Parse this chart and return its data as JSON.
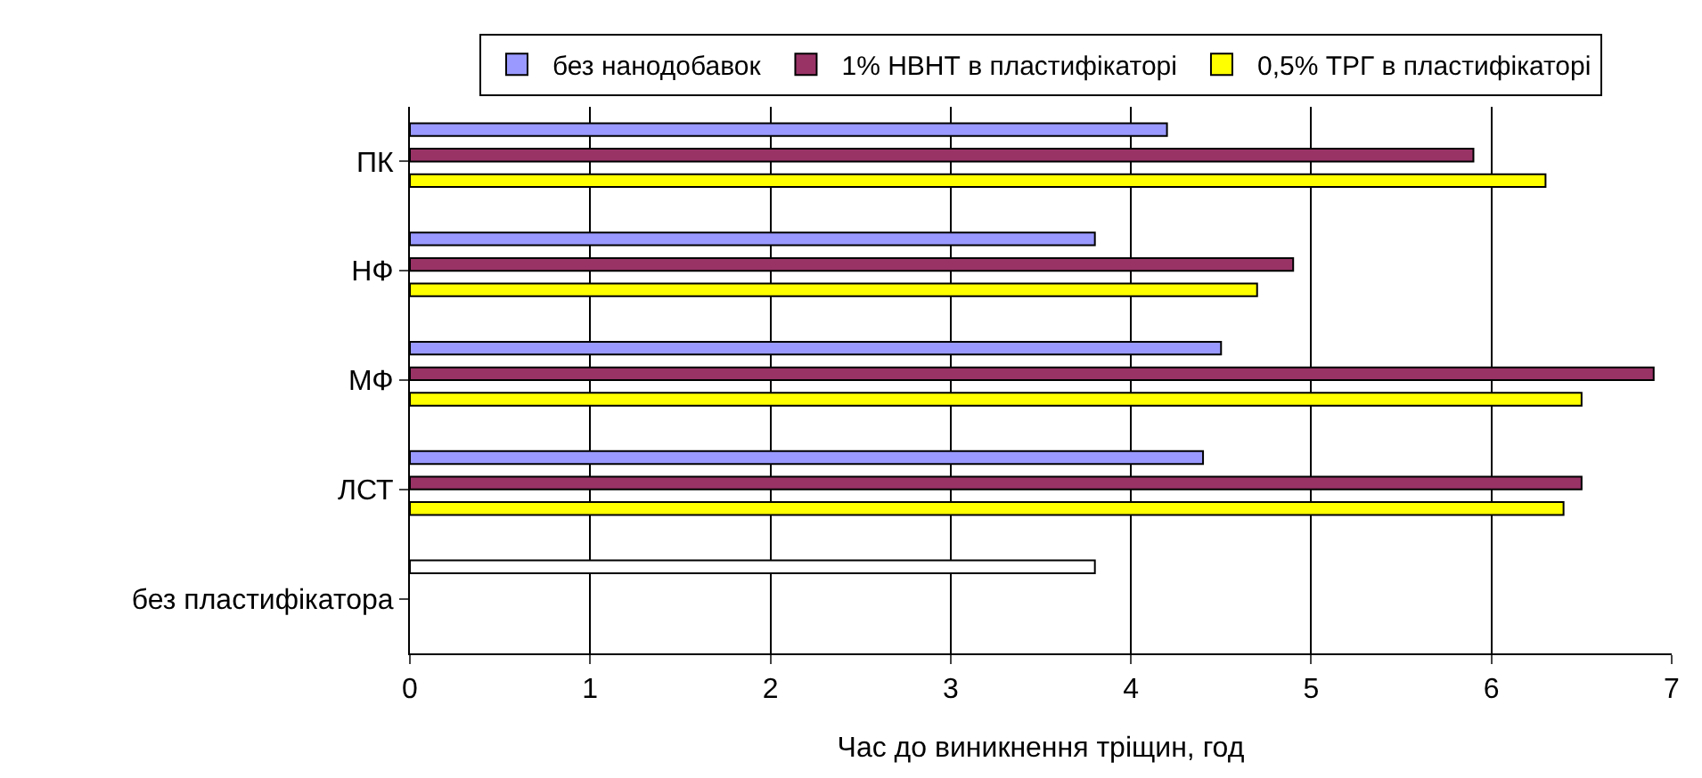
{
  "chart_data": {
    "type": "bar",
    "orientation": "horizontal",
    "xlabel": "Час до виникнення тріщин, год",
    "categories": [
      "ПК",
      "НФ",
      "МФ",
      "ЛСТ",
      "без пластифікатора"
    ],
    "series": [
      {
        "name": "без нанодобавок",
        "color": "#9999ff",
        "colors": [
          "#9999ff",
          "#9999ff",
          "#9999ff",
          "#9999ff",
          "#ffffff"
        ],
        "values": [
          4.2,
          3.8,
          4.5,
          4.4,
          3.8
        ]
      },
      {
        "name": "1% НВНТ в пластифікаторі",
        "color": "#993366",
        "values": [
          5.9,
          4.9,
          6.9,
          6.5,
          null
        ]
      },
      {
        "name": "0,5% ТРГ в пластифікаторі",
        "color": "#ffff00",
        "values": [
          6.3,
          4.7,
          6.5,
          6.4,
          null
        ]
      }
    ],
    "xlim": [
      0,
      7
    ],
    "xticks": [
      0,
      1,
      2,
      3,
      4,
      5,
      6,
      7
    ],
    "grid": "x",
    "legend": "top"
  }
}
